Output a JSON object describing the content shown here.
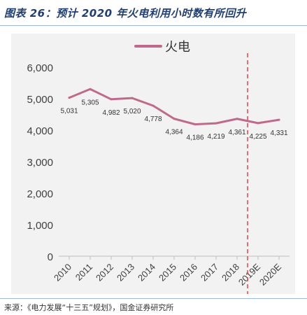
{
  "header": {
    "title": "图表 26：预计 2020 年火电利用小时数有所回升"
  },
  "footer": {
    "source": "来源：《电力发展“十三五”规划》，国金证券研究所"
  },
  "chart_data": {
    "type": "line",
    "title": "",
    "xlabel": "",
    "ylabel": "",
    "categories": [
      "2010",
      "2011",
      "2012",
      "2013",
      "2014",
      "2015",
      "2016",
      "2017",
      "2018",
      "2019E",
      "2020E"
    ],
    "series": [
      {
        "name": "火电",
        "values": [
          5031,
          5305,
          4982,
          5020,
          4778,
          4364,
          4186,
          4219,
          4361,
          4225,
          4331
        ],
        "data_labels": [
          "5,031",
          "5,305",
          "4,982",
          "5,020",
          "4,778",
          "4,364",
          "4,186",
          "4,219",
          "4,361",
          "4,225",
          "4,331"
        ],
        "color": "#c06a8b"
      }
    ],
    "ylim": [
      0,
      6000
    ],
    "y_ticks": [
      0,
      1000,
      2000,
      3000,
      4000,
      5000,
      6000
    ],
    "y_tick_labels": [
      "0",
      "1,000",
      "2,000",
      "3,000",
      "4,000",
      "5,000",
      "6,000"
    ],
    "legend_position": "top-center",
    "grid": false,
    "forecast_divider": {
      "between": [
        "2018",
        "2019E"
      ],
      "color": "#e8424a",
      "style": "dashed"
    },
    "colors": {
      "panel_background": "#f2f2f2",
      "axis": "#bfbfbf",
      "tick_text": "#404040"
    }
  }
}
